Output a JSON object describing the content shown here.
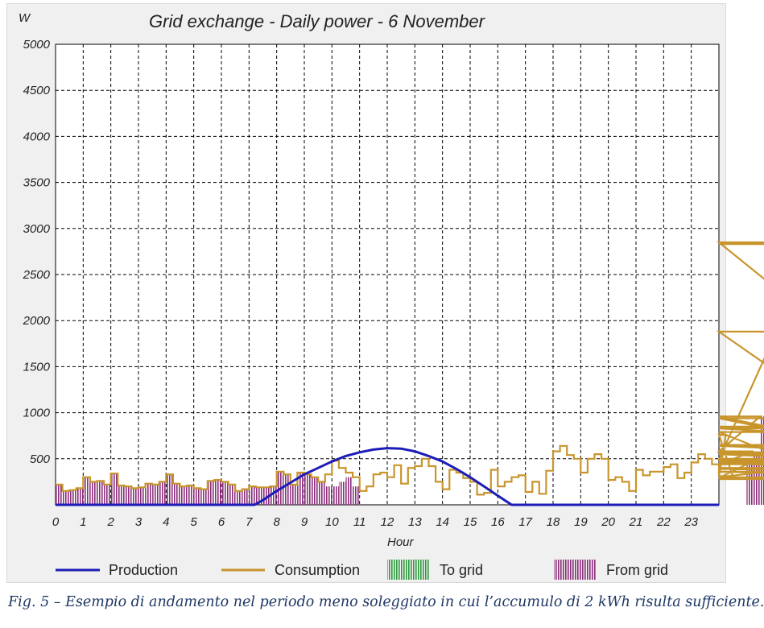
{
  "chart_data": {
    "type": "line",
    "title": "Grid exchange - Daily power - 6 November",
    "ylabel": "W",
    "xlabel": "Hour",
    "ylim": [
      0,
      5000
    ],
    "xlim": [
      0,
      24
    ],
    "yticks": [
      500,
      1000,
      1500,
      2000,
      2500,
      3000,
      3500,
      4000,
      4500,
      5000
    ],
    "xticks": [
      0,
      1,
      2,
      3,
      4,
      5,
      6,
      7,
      8,
      9,
      10,
      11,
      12,
      13,
      14,
      15,
      16,
      17,
      18,
      19,
      20,
      21,
      22,
      23
    ],
    "grid": true,
    "legend_position": "bottom",
    "interval_hours": 0.25,
    "colors": {
      "production": "#1c1cb8",
      "consumption": "#c8952c",
      "to_grid": "#2e9a3e",
      "from_grid": "#8a2d7a",
      "grid_line": "#000000"
    },
    "series": [
      {
        "name": "Production",
        "type": "line",
        "x": [
          0,
          7.2,
          7.5,
          8,
          8.5,
          9,
          9.5,
          10,
          10.5,
          11,
          11.5,
          12,
          12.5,
          13,
          13.5,
          14,
          14.5,
          15,
          15.5,
          16,
          16.5,
          24
        ],
        "y": [
          0,
          0,
          50,
          150,
          240,
          330,
          400,
          470,
          530,
          570,
          600,
          615,
          610,
          580,
          530,
          470,
          390,
          300,
          200,
          100,
          0,
          0
        ]
      },
      {
        "name": "Consumption",
        "type": "step",
        "values": [
          220,
          150,
          160,
          180,
          300,
          250,
          260,
          220,
          340,
          210,
          200,
          180,
          190,
          230,
          220,
          250,
          330,
          230,
          200,
          210,
          180,
          170,
          260,
          270,
          250,
          220,
          150,
          170,
          200,
          190,
          190,
          200,
          360,
          330,
          220,
          350,
          330,
          300,
          250,
          330,
          480,
          400,
          350,
          300,
          150,
          200,
          330,
          350,
          300,
          430,
          230,
          400,
          420,
          500,
          420,
          250,
          170,
          380,
          350,
          290,
          250,
          110,
          130,
          380,
          200,
          250,
          300,
          320,
          140,
          250,
          120,
          370,
          580,
          640,
          540,
          500,
          350,
          500,
          550,
          500,
          270,
          300,
          250,
          150,
          380,
          320,
          360,
          360,
          410,
          440,
          290,
          350,
          460,
          550,
          500,
          440,
          310,
          760,
          310,
          290,
          440,
          580,
          960,
          850,
          830,
          790,
          490,
          500,
          450,
          490,
          2830,
          2850,
          1880,
          1880,
          940,
          650,
          640,
          570,
          500,
          450,
          470,
          550,
          570,
          470,
          300,
          550,
          450,
          450,
          400,
          390,
          360,
          360,
          280
        ]
      },
      {
        "name": "To grid",
        "values": []
      },
      {
        "name": "From grid",
        "type": "hatched-area",
        "values": [
          220,
          150,
          160,
          180,
          300,
          250,
          260,
          220,
          340,
          210,
          200,
          180,
          190,
          230,
          220,
          250,
          330,
          230,
          200,
          210,
          180,
          170,
          260,
          270,
          250,
          220,
          150,
          170,
          200,
          190,
          190,
          200,
          360,
          330,
          220,
          350,
          330,
          300,
          250,
          200,
          200,
          250,
          300,
          200,
          0,
          0,
          0,
          0,
          0,
          0,
          0,
          0,
          0,
          0,
          0,
          0,
          0,
          0,
          0,
          0,
          0,
          0,
          0,
          0,
          0,
          0,
          0,
          0,
          0,
          0,
          0,
          0,
          0,
          0,
          0,
          0,
          0,
          0,
          0,
          0,
          0,
          0,
          0,
          0,
          0,
          0,
          0,
          0,
          0,
          0,
          0,
          0,
          0,
          0,
          0,
          0,
          0,
          0,
          0,
          0,
          440,
          580,
          960,
          850,
          830,
          790,
          490,
          500,
          450,
          490,
          2830,
          2850,
          1880,
          1880,
          940,
          650,
          640,
          570,
          500,
          450,
          470,
          550,
          570,
          470,
          300,
          550,
          450,
          450,
          400,
          390,
          360,
          360,
          280
        ]
      }
    ]
  },
  "caption": "Fig. 5 – Esempio di andamento nel periodo meno soleggiato in cui l’accumulo di 2 kWh risulta sufficiente."
}
